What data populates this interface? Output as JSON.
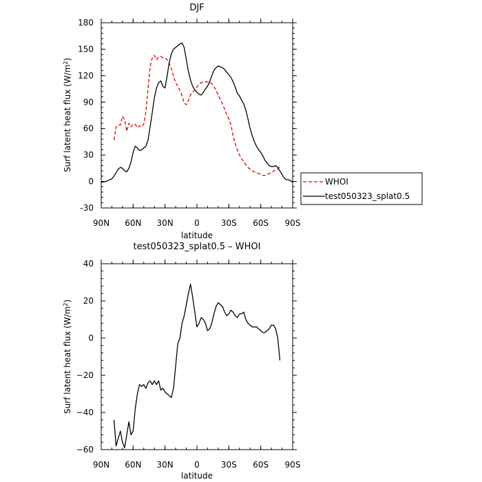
{
  "chart_data": [
    {
      "type": "line",
      "title": "DJF",
      "xlabel": "latitude",
      "ylabel": "Surf latent heat flux (W/m",
      "ylabel_sup": "2",
      "ylabel_close": ")",
      "xlim": [
        90,
        -90
      ],
      "ylim": [
        -30,
        180
      ],
      "x_ticks": [
        90,
        60,
        30,
        0,
        -30,
        -60,
        -90
      ],
      "x_tick_labels": [
        "90N",
        "60N",
        "30N",
        "0",
        "30S",
        "60S",
        "90S"
      ],
      "y_ticks": [
        -30,
        0,
        30,
        60,
        90,
        120,
        150,
        180
      ],
      "y_tick_labels": [
        "-30",
        "0",
        "30",
        "60",
        "90",
        "120",
        "150",
        "180"
      ],
      "legend_position": "right, outside",
      "series": [
        {
          "name": "WHOI",
          "color": "#e00000",
          "dash": "dashed",
          "x": [
            78,
            76,
            74,
            72,
            70,
            68,
            66,
            64,
            62,
            60,
            58,
            56,
            54,
            52,
            50,
            48,
            46,
            44,
            42,
            40,
            38,
            36,
            34,
            32,
            30,
            28,
            26,
            24,
            22,
            20,
            18,
            16,
            14,
            12,
            10,
            8,
            6,
            4,
            2,
            0,
            -2,
            -4,
            -6,
            -8,
            -10,
            -12,
            -14,
            -16,
            -18,
            -20,
            -22,
            -24,
            -26,
            -28,
            -30,
            -32,
            -34,
            -36,
            -38,
            -40,
            -42,
            -44,
            -46,
            -48,
            -50,
            -52,
            -54,
            -56,
            -58,
            -60,
            -62,
            -64,
            -66,
            -68,
            -70,
            -72,
            -74,
            -76,
            -78
          ],
          "y": [
            47,
            62,
            64,
            64,
            74,
            70,
            57,
            66,
            62,
            65,
            65,
            61,
            63,
            62,
            65,
            79,
            105,
            130,
            140,
            143,
            138,
            141,
            142,
            140,
            140,
            138,
            134,
            128,
            119,
            112,
            108,
            103,
            97,
            89,
            87,
            92,
            98,
            101,
            104,
            107,
            110,
            112,
            113,
            113,
            113,
            112,
            111,
            108,
            103,
            98,
            93,
            88,
            82,
            76,
            71,
            64,
            52,
            43,
            36,
            30,
            26,
            22,
            19,
            16,
            14,
            12,
            11,
            10,
            9,
            8,
            7,
            7,
            8,
            9,
            10,
            12,
            13,
            14,
            17
          ]
        },
        {
          "name": "test050323_splat0.5",
          "color": "#000000",
          "dash": "solid",
          "x": [
            90,
            88,
            86,
            84,
            82,
            80,
            78,
            76,
            74,
            72,
            70,
            68,
            66,
            64,
            62,
            60,
            58,
            56,
            54,
            52,
            50,
            48,
            46,
            44,
            42,
            40,
            38,
            36,
            34,
            32,
            30,
            28,
            26,
            24,
            22,
            20,
            18,
            16,
            14,
            12,
            10,
            8,
            6,
            4,
            2,
            0,
            -2,
            -4,
            -6,
            -8,
            -10,
            -12,
            -14,
            -16,
            -18,
            -20,
            -22,
            -24,
            -26,
            -28,
            -30,
            -32,
            -34,
            -36,
            -38,
            -40,
            -42,
            -44,
            -46,
            -48,
            -50,
            -52,
            -54,
            -56,
            -58,
            -60,
            -62,
            -64,
            -66,
            -68,
            -70,
            -72,
            -74,
            -76,
            -78,
            -80,
            -82,
            -84,
            -86,
            -88,
            -90
          ],
          "y": [
            -1,
            -0.5,
            0,
            1,
            2,
            3,
            6,
            10,
            14,
            16,
            15,
            12,
            11,
            15,
            22,
            33,
            40,
            38,
            35,
            36,
            38,
            40,
            47,
            62,
            78,
            95,
            106,
            112,
            114,
            108,
            106,
            120,
            135,
            145,
            150,
            152,
            154,
            156,
            157,
            152,
            138,
            125,
            115,
            108,
            104,
            101,
            99,
            98,
            101,
            105,
            108,
            113,
            120,
            126,
            129,
            131,
            130,
            129,
            127,
            124,
            121,
            118,
            113,
            107,
            100,
            97,
            92,
            88,
            81,
            71,
            60,
            52,
            45,
            40,
            36,
            33,
            29,
            24,
            21,
            18,
            17,
            17,
            18,
            16,
            12,
            8,
            4,
            2,
            2,
            1,
            -1
          ]
        }
      ]
    },
    {
      "type": "line",
      "title": "test050323_splat0.5 – WHOI",
      "xlabel": "latitude",
      "ylabel": "Surf latent heat flux (W/m",
      "ylabel_sup": "2",
      "ylabel_close": ")",
      "xlim": [
        90,
        -90
      ],
      "ylim": [
        -60,
        40
      ],
      "x_ticks": [
        90,
        60,
        30,
        0,
        -30,
        -60,
        -90
      ],
      "x_tick_labels": [
        "90N",
        "60N",
        "30N",
        "0",
        "30S",
        "60S",
        "90S"
      ],
      "y_ticks": [
        -60,
        -40,
        -20,
        0,
        20,
        40
      ],
      "y_tick_labels": [
        "−60",
        "−40",
        "−20",
        "0",
        "20",
        "40"
      ],
      "series": [
        {
          "name": "",
          "color": "#000000",
          "dash": "solid",
          "x": [
            78,
            76,
            74,
            72,
            70,
            68,
            66,
            64,
            62,
            60,
            58,
            56,
            54,
            52,
            50,
            48,
            46,
            44,
            42,
            40,
            38,
            36,
            34,
            32,
            30,
            28,
            26,
            24,
            22,
            20,
            18,
            16,
            14,
            12,
            10,
            8,
            6,
            4,
            2,
            0,
            -2,
            -4,
            -6,
            -8,
            -10,
            -12,
            -14,
            -16,
            -18,
            -20,
            -22,
            -24,
            -26,
            -28,
            -30,
            -32,
            -34,
            -36,
            -38,
            -40,
            -42,
            -44,
            -46,
            -48,
            -50,
            -52,
            -54,
            -56,
            -58,
            -60,
            -62,
            -64,
            -66,
            -68,
            -70,
            -72,
            -74,
            -76,
            -78
          ],
          "y": [
            -44,
            -58,
            -54,
            -50,
            -56,
            -59,
            -52,
            -45,
            -52,
            -50,
            -38,
            -30,
            -25,
            -26,
            -25,
            -27,
            -24,
            -23,
            -25,
            -23,
            -25,
            -23,
            -28,
            -27,
            -29,
            -30,
            -31,
            -32,
            -27,
            -15,
            -3,
            0,
            8,
            12,
            18,
            24,
            29,
            22,
            14,
            6,
            8,
            11,
            10,
            8,
            4,
            5,
            8,
            13,
            17,
            19,
            18,
            17,
            14,
            12,
            13,
            15,
            14,
            12,
            11,
            13,
            13,
            14,
            10,
            8,
            7,
            6,
            6,
            6,
            5,
            4,
            3,
            3,
            4,
            5,
            7,
            7,
            5,
            0,
            -12
          ]
        }
      ]
    }
  ]
}
